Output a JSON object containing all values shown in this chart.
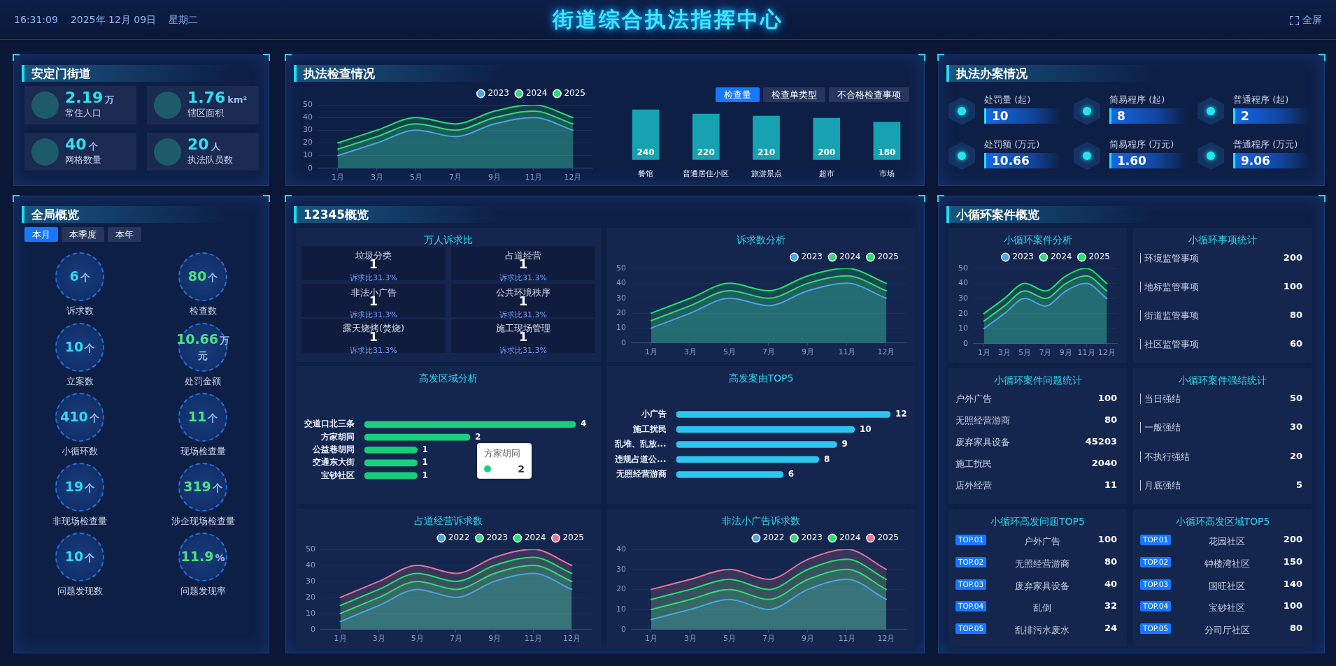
{
  "chart_data": [
    {
      "type": "other",
      "title": "街道综合执法指挥中心",
      "annotations": [
        "16:31:09",
        "2025年 12月 09日",
        "星期二",
        "全屏"
      ]
    },
    {
      "type": "other",
      "title": "安定门街道",
      "categories": [
        "常住人口",
        "辖区面积",
        "网格数量",
        "执法队员数"
      ],
      "value_labels": [
        "2.19万",
        "1.76km²",
        "40个",
        "20人"
      ]
    },
    {
      "type": "other",
      "title": "执法检查情况"
    },
    {
      "type": "area",
      "categories": [
        "1月",
        "3月",
        "5月",
        "7月",
        "9月",
        "11月",
        "12月"
      ],
      "series": [
        {
          "name": "2023",
          "color": "#4da3e6",
          "values": [
            10,
            20,
            30,
            25,
            35,
            40,
            30
          ]
        },
        {
          "name": "2024",
          "color": "#3ad57e",
          "values": [
            15,
            25,
            35,
            30,
            40,
            45,
            35
          ]
        },
        {
          "name": "2025",
          "color": "#1fe36c",
          "values": [
            20,
            30,
            40,
            35,
            45,
            50,
            40
          ]
        }
      ],
      "ylim": [
        0,
        50
      ],
      "yticks": [
        0,
        10,
        20,
        30,
        40,
        50
      ],
      "grid": "y",
      "legend": "top right"
    },
    {
      "type": "bar",
      "categories": [
        "餐馆",
        "普通居住小区",
        "旅游景点",
        "超市",
        "市场"
      ],
      "values": [
        240,
        220,
        210,
        200,
        180
      ],
      "color": "#17a2b2",
      "data_labels": true,
      "tick_labels": "x",
      "annotations": [
        "检查量",
        "检查单类型",
        "不合格检查事项"
      ]
    },
    {
      "type": "other",
      "title": "执法办案情况",
      "categories": [
        "处罚量 (起)",
        "简易程序 (起)",
        "普通程序 (起)",
        "处罚额 (万元)",
        "简易程序 (万元)",
        "普通程序 (万元)"
      ],
      "value_labels": [
        "10",
        "8",
        "2",
        "10.66",
        "1.60",
        "9.06"
      ]
    },
    {
      "type": "other",
      "title": "全局概览",
      "annotations": [
        "本月",
        "本季度",
        "本年"
      ],
      "categories": [
        "诉求数",
        "检查数",
        "立案数",
        "处罚金额",
        "小循环数",
        "现场检查量",
        "非现场检查量",
        "涉企现场检查量",
        "问题发现数",
        "问题发现率"
      ],
      "value_labels": [
        "6个",
        "80个",
        "10个",
        "10.66万元",
        "410个",
        "11个",
        "19个",
        "319个",
        "10个",
        "11.9%"
      ]
    },
    {
      "type": "other",
      "title": "12345概览"
    },
    {
      "type": "other",
      "title": "万人诉求比",
      "categories": [
        "垃圾分类",
        "占道经营",
        "非法小广告",
        "公共环境秩序",
        "露天烧烤(焚烧)",
        "施工现场管理"
      ],
      "value_labels": [
        "1",
        "1",
        "1",
        "1",
        "1",
        "1"
      ],
      "annotations": [
        "诉求比31.3%",
        "诉求比31.3%",
        "诉求比31.3%",
        "诉求比31.3%",
        "诉求比31.3%",
        "诉求比31.3%"
      ]
    },
    {
      "type": "area",
      "title": "诉求数分析",
      "categories": [
        "1月",
        "3月",
        "5月",
        "7月",
        "9月",
        "11月",
        "12月"
      ],
      "series": [
        {
          "name": "2023",
          "color": "#4da3e6",
          "values": [
            10,
            20,
            30,
            25,
            35,
            40,
            30
          ]
        },
        {
          "name": "2024",
          "color": "#3ad57e",
          "values": [
            15,
            25,
            35,
            30,
            40,
            45,
            35
          ]
        },
        {
          "name": "2025",
          "color": "#1fe36c",
          "values": [
            20,
            30,
            40,
            35,
            45,
            50,
            40
          ]
        }
      ],
      "ylim": [
        0,
        50
      ],
      "yticks": [
        0,
        10,
        20,
        30,
        40,
        50
      ],
      "grid": "y",
      "legend": "top right"
    },
    {
      "type": "bar",
      "title": "高发区域分析",
      "orientation": "horizontal",
      "categories": [
        "交道口北三条",
        "方家胡同",
        "公益巷胡同",
        "交通东大街",
        "宝钞社区"
      ],
      "values": [
        4,
        2,
        1,
        1,
        1
      ],
      "color": "#19cf7e",
      "data_labels": true,
      "tick_labels": "y",
      "annotations": [
        {
          "text": "方家胡同",
          "x": 2,
          "y": "方家胡同"
        },
        "2"
      ]
    },
    {
      "type": "bar",
      "title": "高发案由TOP5",
      "orientation": "horizontal",
      "categories": [
        "小广告",
        "施工扰民",
        "乱堆、乱放...",
        "违规占道公...",
        "无照经营游商"
      ],
      "values": [
        12,
        10,
        9,
        8,
        6
      ],
      "color": "#2ec5f0",
      "data_labels": true,
      "tick_labels": "y"
    },
    {
      "type": "area",
      "title": "占道经营诉求数",
      "categories": [
        "1月",
        "3月",
        "5月",
        "7月",
        "9月",
        "11月",
        "12月"
      ],
      "series": [
        {
          "name": "2022",
          "color": "#4da3e6",
          "values": [
            5,
            15,
            25,
            20,
            30,
            35,
            25
          ]
        },
        {
          "name": "2023",
          "color": "#3ad57e",
          "values": [
            10,
            20,
            30,
            25,
            35,
            40,
            30
          ]
        },
        {
          "name": "2024",
          "color": "#1fe36c",
          "values": [
            15,
            25,
            35,
            30,
            40,
            45,
            35
          ]
        },
        {
          "name": "2025",
          "color": "#e2739b",
          "values": [
            20,
            30,
            40,
            35,
            45,
            50,
            40
          ]
        }
      ],
      "ylim": [
        0,
        50
      ],
      "yticks": [
        0,
        10,
        20,
        30,
        40,
        50
      ],
      "grid": "y",
      "legend": "top right"
    },
    {
      "type": "area",
      "title": "非法小广告诉求数",
      "categories": [
        "1月",
        "3月",
        "5月",
        "7月",
        "9月",
        "11月",
        "12月"
      ],
      "series": [
        {
          "name": "2022",
          "color": "#4da3e6",
          "values": [
            5,
            10,
            15,
            10,
            20,
            25,
            15
          ]
        },
        {
          "name": "2023",
          "color": "#3ad57e",
          "values": [
            10,
            15,
            20,
            15,
            25,
            30,
            20
          ]
        },
        {
          "name": "2024",
          "color": "#1fe36c",
          "values": [
            15,
            20,
            25,
            20,
            30,
            35,
            25
          ]
        },
        {
          "name": "2025",
          "color": "#e2739b",
          "values": [
            20,
            25,
            30,
            25,
            35,
            40,
            30
          ]
        }
      ],
      "ylim": [
        0,
        40
      ],
      "yticks": [
        0,
        10,
        20,
        30,
        40
      ],
      "grid": "y",
      "legend": "top right"
    },
    {
      "type": "other",
      "title": "小循环案件概览"
    },
    {
      "type": "area",
      "title": "小循环案件分析",
      "categories": [
        "1月",
        "3月",
        "5月",
        "7月",
        "9月",
        "11月",
        "12月"
      ],
      "series": [
        {
          "name": "2023",
          "color": "#4da3e6",
          "values": [
            10,
            20,
            30,
            25,
            35,
            40,
            30
          ]
        },
        {
          "name": "2024",
          "color": "#3ad57e",
          "values": [
            15,
            25,
            35,
            30,
            40,
            45,
            35
          ]
        },
        {
          "name": "2025",
          "color": "#1fe36c",
          "values": [
            20,
            30,
            40,
            35,
            45,
            50,
            40
          ]
        }
      ],
      "ylim": [
        0,
        50
      ],
      "yticks": [
        0,
        10,
        20,
        30,
        40,
        50
      ],
      "grid": "y",
      "legend": "top right"
    },
    {
      "type": "other",
      "title": "小循环事项统计",
      "categories": [
        "环境监管事项",
        "地标监管事项",
        "街道监管事项",
        "社区监管事项"
      ],
      "value_labels": [
        "200",
        "100",
        "80",
        "60"
      ]
    },
    {
      "type": "other",
      "title": "小循环案件问题统计",
      "categories": [
        "户外广告",
        "无照经营游商",
        "废弃家具设备",
        "施工扰民",
        "店外经营"
      ],
      "value_labels": [
        "100",
        "80",
        "45203",
        "2040",
        "11"
      ]
    },
    {
      "type": "other",
      "title": "小循环案件强结统计",
      "categories": [
        "当日强结",
        "一般强结",
        "不执行强结",
        "月底强结"
      ],
      "value_labels": [
        "50",
        "30",
        "20",
        "5"
      ]
    },
    {
      "type": "other",
      "title": "小循环高发问题TOP5",
      "annotations": [
        "TOP.01",
        "TOP.02",
        "TOP.03",
        "TOP.04",
        "TOP.05"
      ],
      "categories": [
        "户外广告",
        "无照经营游商",
        "废弃家具设备",
        "乱倒",
        "乱排污水废水"
      ],
      "value_labels": [
        "100",
        "80",
        "40",
        "32",
        "24"
      ]
    },
    {
      "type": "other",
      "title": "小循环高发区域TOP5",
      "annotations": [
        "TOP.01",
        "TOP.02",
        "TOP.03",
        "TOP.04",
        "TOP.05"
      ],
      "categories": [
        "花园社区",
        "钟楼湾社区",
        "国旺社区",
        "宝钞社区",
        "分司厅社区"
      ],
      "value_labels": [
        "200",
        "150",
        "140",
        "100",
        "80"
      ]
    }
  ]
}
